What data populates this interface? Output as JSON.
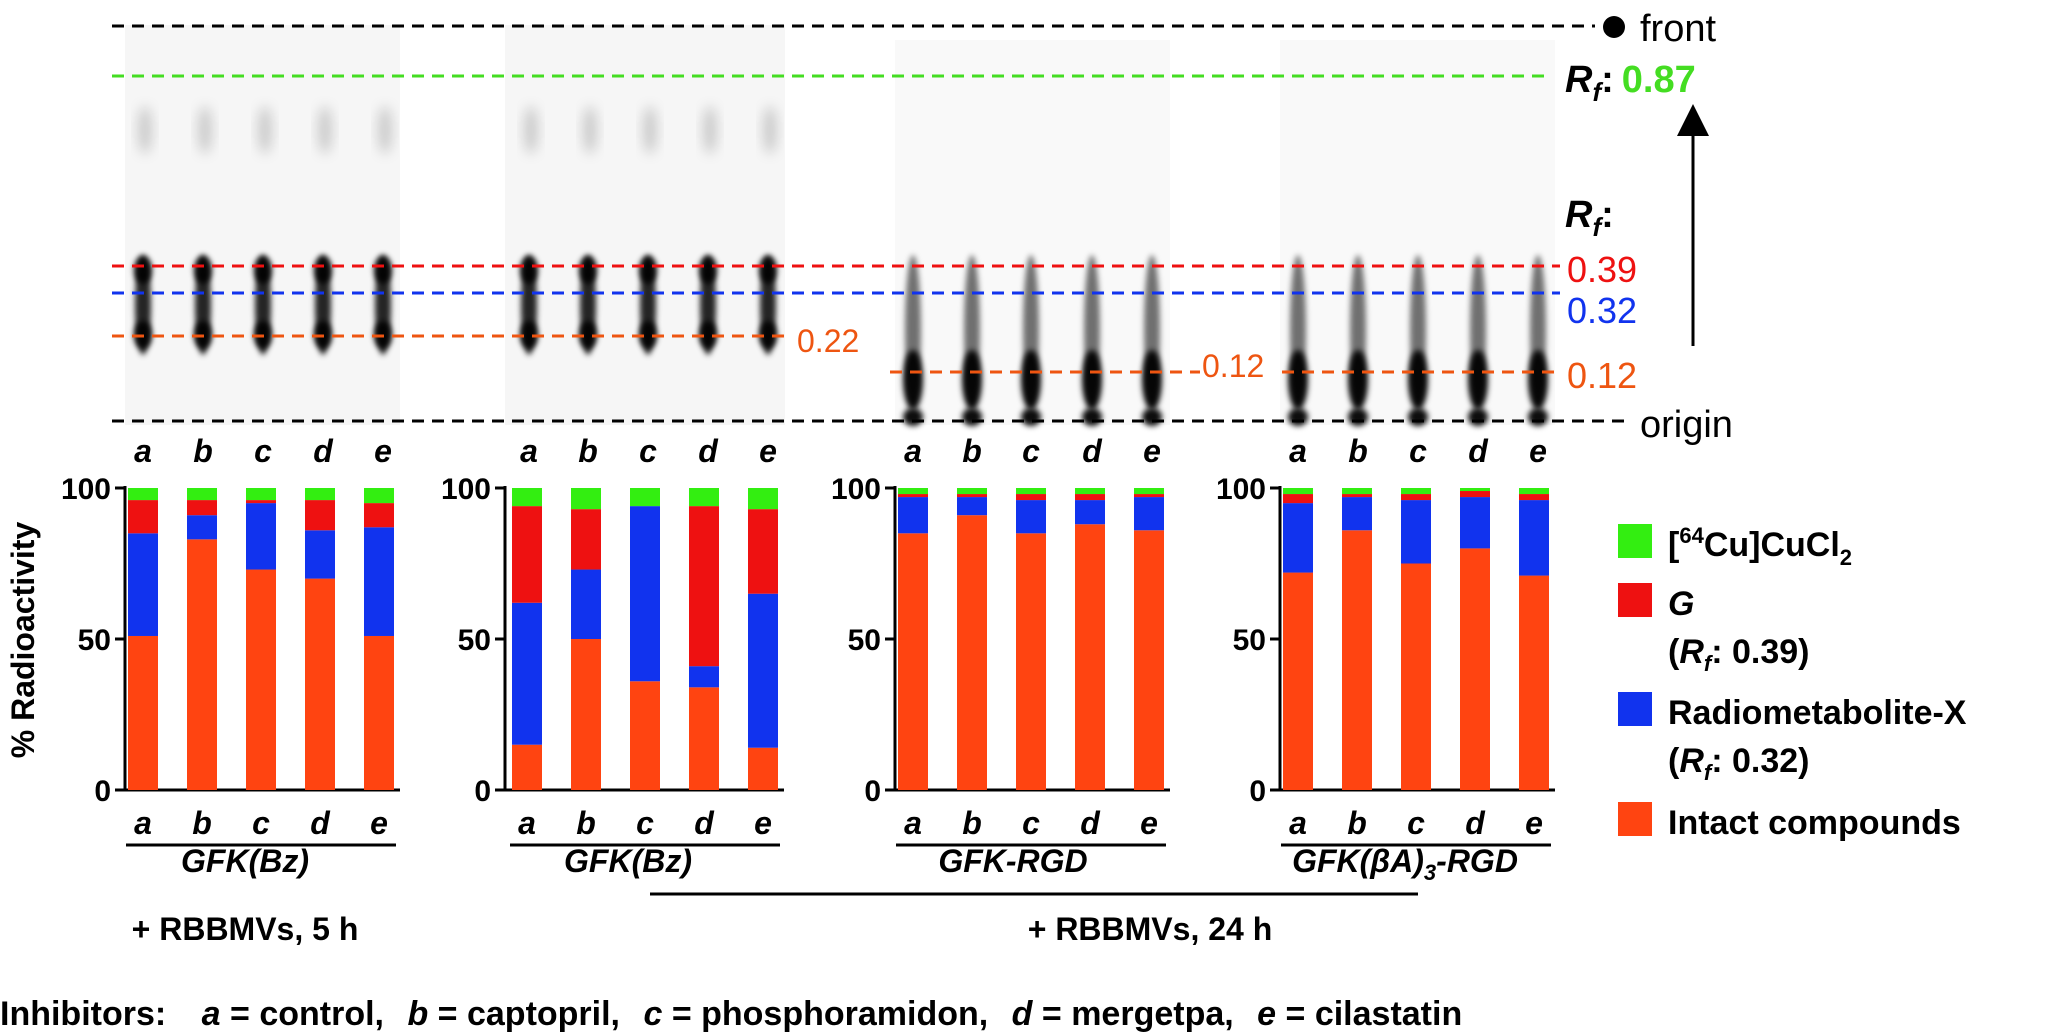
{
  "tlc": {
    "front_label": "front",
    "origin_label": "origin",
    "rf_prefix": "R",
    "rf_sub": "f",
    "rf_colon": ":",
    "rf_front_value": "0.87",
    "rf_039": "0.39",
    "rf_032": "0.32",
    "rf_012": "0.12",
    "panel1_band": "0.22",
    "panel3_band": "0.12",
    "lane_letters": [
      "a",
      "b",
      "c",
      "d",
      "e"
    ],
    "colors": {
      "front_line": "#000000",
      "rf087_line": "#44dd22",
      "rf039_line": "#ee1111",
      "rf032_line": "#1133ee",
      "band_line": "#ee5511"
    }
  },
  "chart_data": [
    {
      "type": "bar",
      "stacked": true,
      "title": "GFK(Bz)",
      "condition": "+ RBBMVs, 5 h",
      "categories": [
        "a",
        "b",
        "c",
        "d",
        "e"
      ],
      "ylabel": "% Radioactivity",
      "ylim": [
        0,
        100
      ],
      "yticks": [
        0,
        50,
        100
      ],
      "series": [
        {
          "name": "Intact compounds",
          "values": [
            51,
            83,
            73,
            70,
            51
          ]
        },
        {
          "name": "Radiometabolite-X",
          "values": [
            34,
            8,
            22,
            16,
            36
          ]
        },
        {
          "name": "G",
          "values": [
            11,
            5,
            1,
            10,
            8
          ]
        },
        {
          "name": "[64Cu]CuCl2",
          "values": [
            4,
            4,
            4,
            4,
            5
          ]
        }
      ]
    },
    {
      "type": "bar",
      "stacked": true,
      "title": "GFK(Bz)",
      "condition": "+ RBBMVs, 24 h",
      "categories": [
        "a",
        "b",
        "c",
        "d",
        "e"
      ],
      "ylim": [
        0,
        100
      ],
      "yticks": [
        0,
        50,
        100
      ],
      "series": [
        {
          "name": "Intact compounds",
          "values": [
            15,
            50,
            36,
            34,
            14
          ]
        },
        {
          "name": "Radiometabolite-X",
          "values": [
            47,
            23,
            58,
            7,
            51
          ]
        },
        {
          "name": "G",
          "values": [
            32,
            20,
            0,
            53,
            28
          ]
        },
        {
          "name": "[64Cu]CuCl2",
          "values": [
            6,
            7,
            6,
            6,
            7
          ]
        }
      ]
    },
    {
      "type": "bar",
      "stacked": true,
      "title": "GFK-RGD",
      "condition": "+ RBBMVs, 24 h",
      "categories": [
        "a",
        "b",
        "c",
        "d",
        "e"
      ],
      "ylim": [
        0,
        100
      ],
      "yticks": [
        0,
        50,
        100
      ],
      "series": [
        {
          "name": "Intact compounds",
          "values": [
            85,
            91,
            85,
            88,
            86
          ]
        },
        {
          "name": "Radiometabolite-X",
          "values": [
            12,
            6,
            11,
            8,
            11
          ]
        },
        {
          "name": "G",
          "values": [
            1,
            1,
            2,
            2,
            1
          ]
        },
        {
          "name": "[64Cu]CuCl2",
          "values": [
            2,
            2,
            2,
            2,
            2
          ]
        }
      ]
    },
    {
      "type": "bar",
      "stacked": true,
      "title": "GFK(βA)3-RGD",
      "condition": "+ RBBMVs, 24 h",
      "categories": [
        "a",
        "b",
        "c",
        "d",
        "e"
      ],
      "ylim": [
        0,
        100
      ],
      "yticks": [
        0,
        50,
        100
      ],
      "series": [
        {
          "name": "Intact compounds",
          "values": [
            72,
            86,
            75,
            80,
            71
          ]
        },
        {
          "name": "Radiometabolite-X",
          "values": [
            23,
            11,
            21,
            17,
            25
          ]
        },
        {
          "name": "G",
          "values": [
            3,
            1,
            2,
            2,
            2
          ]
        },
        {
          "name": "[64Cu]CuCl2",
          "values": [
            2,
            2,
            2,
            1,
            2
          ]
        }
      ]
    }
  ],
  "legend": {
    "items": [
      {
        "key": "cucl2",
        "color": "#33ee11",
        "label_pre": "[",
        "label_sup": "64",
        "label_mid": "Cu]CuCl",
        "label_sub": "2"
      },
      {
        "key": "g",
        "color": "#ee1111",
        "line1": "G",
        "line2_pre": "(",
        "line2_rf": "R",
        "line2_sub": "f",
        "line2_post": ": 0.39)"
      },
      {
        "key": "rmx",
        "color": "#1133ee",
        "line1": "Radiometabolite-X",
        "line2_pre": "(",
        "line2_rf": "R",
        "line2_sub": "f",
        "line2_post": ": 0.32)"
      },
      {
        "key": "intact",
        "color": "#ff4411",
        "line1": "Intact compounds"
      }
    ]
  },
  "series_colors": {
    "Intact compounds": "#ff4411",
    "Radiometabolite-X": "#1133ee",
    "G": "#ee1111",
    "[64Cu]CuCl2": "#33ee11"
  },
  "conditions": {
    "five_h": "+ RBBMVs, 5 h",
    "twentyfour_h": "+ RBBMVs, 24 h"
  },
  "compound_labels": {
    "p1": "GFK(Bz)",
    "p2": "GFK(Bz)",
    "p3": "GFK-RGD",
    "p4_pre": "GFK(βA)",
    "p4_sub": "3",
    "p4_post": "-RGD"
  },
  "inhibitors": {
    "title": "Inhibitors:",
    "items": [
      {
        "letter": "a",
        "text": " = control,"
      },
      {
        "letter": "b",
        "text": " = captopril,"
      },
      {
        "letter": "c",
        "text": " = phosphoramidon,"
      },
      {
        "letter": "d",
        "text": " = mergetpa,"
      },
      {
        "letter": "e",
        "text": " = cilastatin"
      }
    ]
  }
}
